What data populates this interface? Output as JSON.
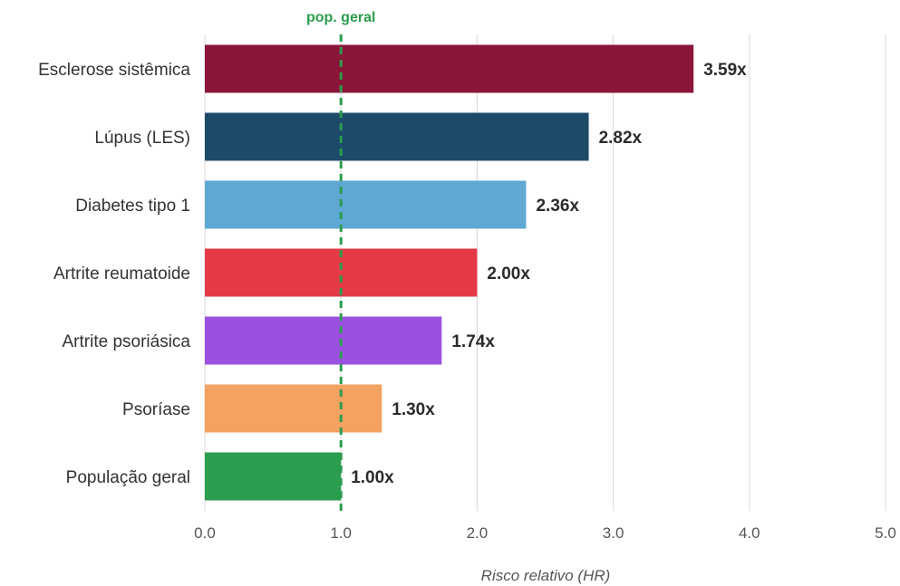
{
  "chart_data": {
    "type": "bar",
    "orientation": "horizontal",
    "categories": [
      "Esclerose sistêmica",
      "Lúpus (LES)",
      "Diabetes tipo 1",
      "Artrite reumatoide",
      "Artrite psoriásica",
      "Psoríase",
      "População geral"
    ],
    "values": [
      3.59,
      2.82,
      2.36,
      2.0,
      1.74,
      1.3,
      1.0
    ],
    "value_labels": [
      "3.59x",
      "2.82x",
      "2.36x",
      "2.00x",
      "1.74x",
      "1.30x",
      "1.00x"
    ],
    "colors": [
      "#8b1538",
      "#1d4a68",
      "#5fa8d3",
      "#e63946",
      "#9b51e0",
      "#f4a261",
      "#2a9d4e"
    ],
    "xlabel": "Risco relativo (HR)",
    "xlim": [
      0,
      5
    ],
    "xticks": [
      0,
      1,
      2,
      3,
      4,
      5
    ],
    "xtick_labels": [
      "0.0",
      "1.0",
      "2.0",
      "3.0",
      "4.0",
      "5.0"
    ],
    "grid": "vertical",
    "reference_line": {
      "value": 1.0,
      "label": "pop. geral",
      "color": "#2a9d4e",
      "style": "dashed"
    }
  }
}
